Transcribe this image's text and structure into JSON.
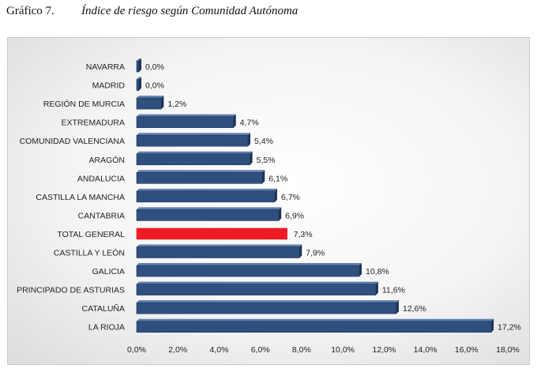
{
  "caption": {
    "number": "Gráfico 7.",
    "title": "Índice de riesgo según Comunidad Autónoma"
  },
  "colors": {
    "bar": "#2f4f7e",
    "bar_top": "#5f7fab",
    "bar_dark": "#1d3457",
    "highlight": "#ee1c25",
    "highlight_top": "#ff4a52"
  },
  "chart_data": {
    "type": "bar",
    "orientation": "horizontal",
    "title": "Índice de riesgo según Comunidad Autónoma",
    "xlabel": "",
    "ylabel": "",
    "xlim": [
      0,
      18
    ],
    "highlight_category": "TOTAL GENERAL",
    "categories": [
      "NAVARRA",
      "MADRID",
      "REGIÓN DE MURCIA",
      "EXTREMADURA",
      "COMUNIDAD VALENCIANA",
      "ARAGÓN",
      "ANDALUCIA",
      "CASTILLA LA MANCHA",
      "CANTABRIA",
      "TOTAL GENERAL",
      "CASTILLA Y LEÓN",
      "GALICIA",
      "PRINCIPADO DE ASTURIAS",
      "CATALUÑA",
      "LA RIOJA"
    ],
    "values": [
      0.0,
      0.0,
      1.2,
      4.7,
      5.4,
      5.5,
      6.1,
      6.7,
      6.9,
      7.3,
      7.9,
      10.8,
      11.6,
      12.6,
      17.2
    ],
    "value_labels": [
      "0,0%",
      "0,0%",
      "1,2%",
      "4,7%",
      "5,4%",
      "5,5%",
      "6,1%",
      "6,7%",
      "6,9%",
      "7,3%",
      "7,9%",
      "10,8%",
      "11,6%",
      "12,6%",
      "17,2%"
    ],
    "x_ticks": [
      0,
      2,
      4,
      6,
      8,
      10,
      12,
      14,
      16,
      18
    ],
    "x_tick_labels": [
      "0,0%",
      "2,0%",
      "4,0%",
      "6,0%",
      "8,0%",
      "10,0%",
      "12,0%",
      "14,0%",
      "16,0%",
      "18,0%"
    ]
  }
}
